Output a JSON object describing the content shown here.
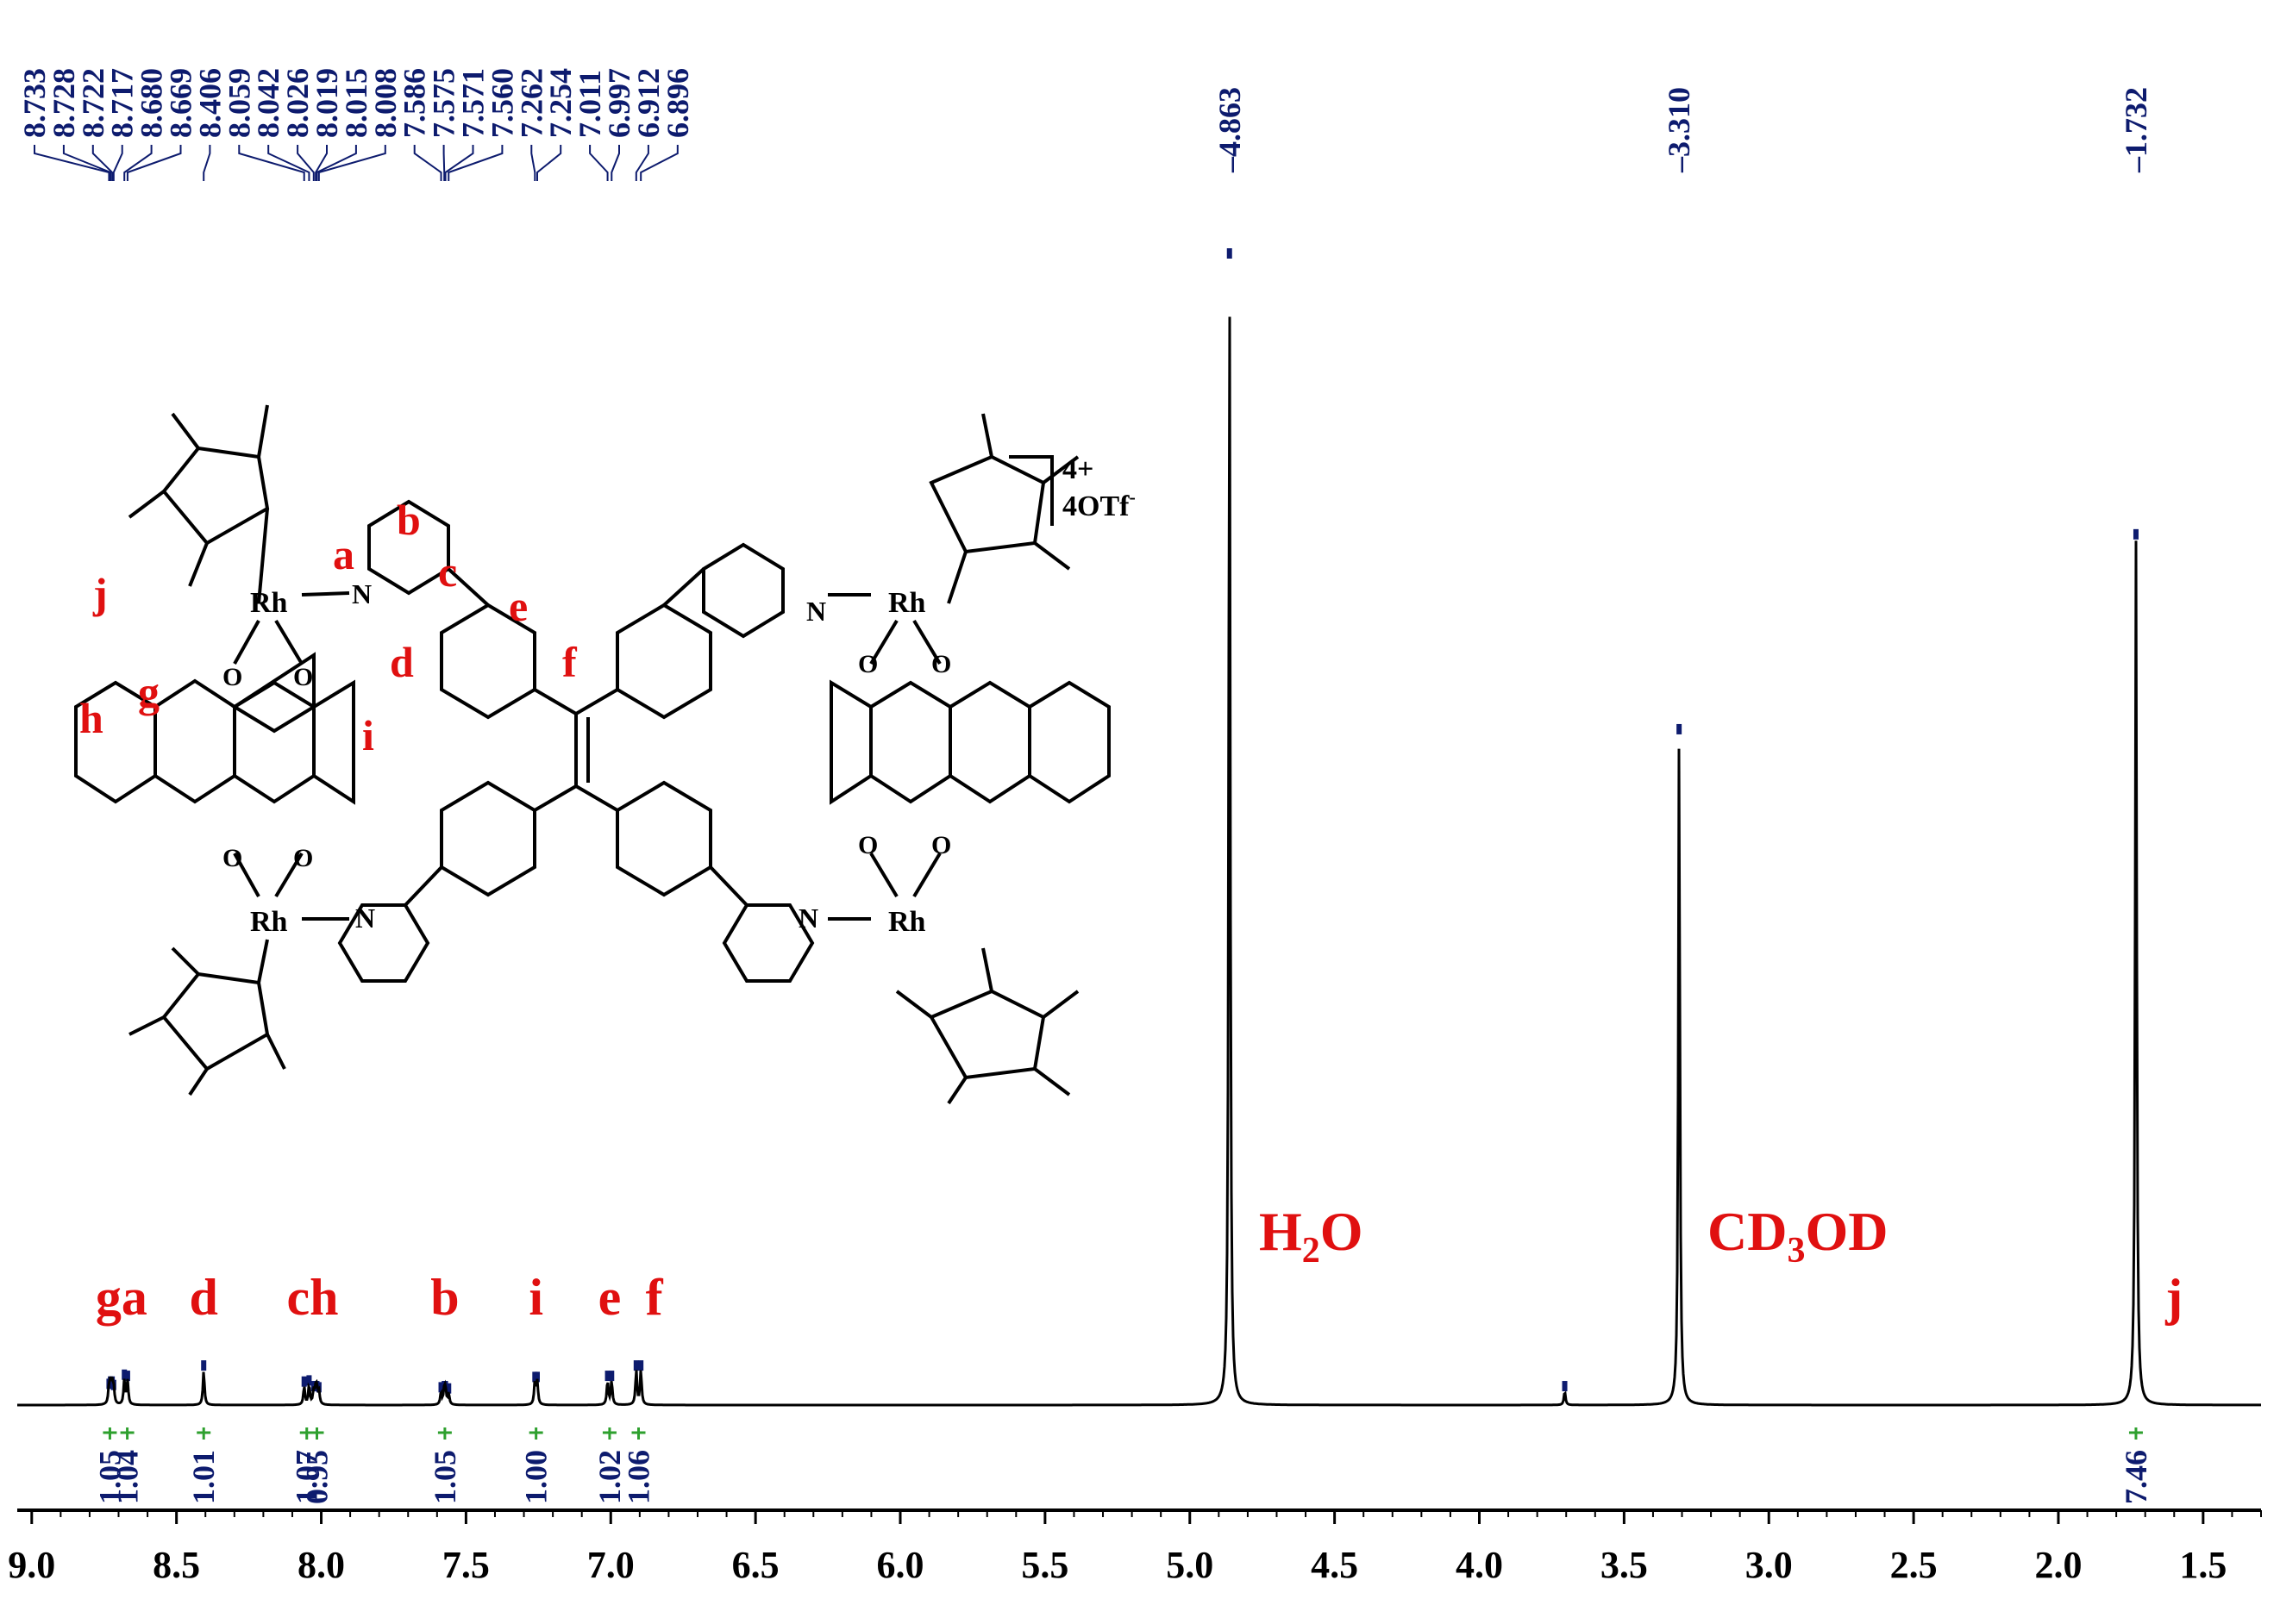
{
  "chart_data": {
    "type": "line",
    "title": "",
    "xlabel": "",
    "ylabel": "",
    "x_axis": {
      "range_ppm": [
        9.05,
        1.3
      ],
      "reversed": true,
      "ticks": [
        "9.0",
        "8.5",
        "8.0",
        "7.5",
        "7.0",
        "6.5",
        "6.0",
        "5.5",
        "5.0",
        "4.5",
        "4.0",
        "3.5",
        "3.0",
        "2.5",
        "2.0",
        "1.5"
      ]
    },
    "y_axis": {
      "range": [
        0,
        1
      ]
    },
    "peak_shifts": [
      "8.733",
      "8.728",
      "8.722",
      "8.717",
      "8.680",
      "8.669",
      "8.406",
      "8.059",
      "8.042",
      "8.026",
      "8.019",
      "8.015",
      "8.008",
      "7.586",
      "7.575",
      "7.571",
      "7.560",
      "7.262",
      "7.254",
      "7.011",
      "6.997",
      "6.912",
      "6.896",
      "4.863",
      "3.310",
      "1.732"
    ],
    "peaks": [
      {
        "ppm": 8.733,
        "height": 0.014
      },
      {
        "ppm": 8.728,
        "height": 0.016
      },
      {
        "ppm": 8.722,
        "height": 0.016
      },
      {
        "ppm": 8.717,
        "height": 0.013
      },
      {
        "ppm": 8.68,
        "height": 0.022
      },
      {
        "ppm": 8.669,
        "height": 0.021
      },
      {
        "ppm": 8.406,
        "height": 0.03
      },
      {
        "ppm": 8.059,
        "height": 0.016
      },
      {
        "ppm": 8.042,
        "height": 0.017
      },
      {
        "ppm": 8.026,
        "height": 0.012
      },
      {
        "ppm": 8.019,
        "height": 0.012
      },
      {
        "ppm": 8.015,
        "height": 0.012
      },
      {
        "ppm": 8.008,
        "height": 0.011
      },
      {
        "ppm": 7.586,
        "height": 0.011
      },
      {
        "ppm": 7.575,
        "height": 0.012
      },
      {
        "ppm": 7.571,
        "height": 0.012
      },
      {
        "ppm": 7.56,
        "height": 0.01
      },
      {
        "ppm": 7.262,
        "height": 0.02
      },
      {
        "ppm": 7.254,
        "height": 0.02
      },
      {
        "ppm": 7.011,
        "height": 0.021
      },
      {
        "ppm": 6.997,
        "height": 0.021
      },
      {
        "ppm": 6.912,
        "height": 0.03
      },
      {
        "ppm": 6.896,
        "height": 0.03
      },
      {
        "ppm": 4.863,
        "height": 1.0
      },
      {
        "ppm": 3.705,
        "height": 0.012
      },
      {
        "ppm": 3.31,
        "height": 0.585
      },
      {
        "ppm": 1.732,
        "height": 0.755
      }
    ],
    "peak_labels": [
      {
        "ppm": 4.863,
        "text": "4.863"
      },
      {
        "ppm": 3.31,
        "text": "3.310"
      },
      {
        "ppm": 1.732,
        "text": "1.732"
      }
    ],
    "integrals": [
      {
        "ppm": 8.73,
        "value": "1.05"
      },
      {
        "ppm": 8.67,
        "value": "1.04"
      },
      {
        "ppm": 8.406,
        "value": "1.01"
      },
      {
        "ppm": 8.05,
        "value": "1.07"
      },
      {
        "ppm": 8.015,
        "value": "0.95"
      },
      {
        "ppm": 7.573,
        "value": "1.05"
      },
      {
        "ppm": 7.258,
        "value": "1.00"
      },
      {
        "ppm": 7.004,
        "value": "1.02"
      },
      {
        "ppm": 6.904,
        "value": "1.06"
      },
      {
        "ppm": 1.732,
        "value": "7.46"
      }
    ],
    "assignments": [
      {
        "text": "ga",
        "ppm": 8.69
      },
      {
        "text": "d",
        "ppm": 8.406
      },
      {
        "text": "ch",
        "ppm": 8.03
      },
      {
        "text": "b",
        "ppm": 7.573
      },
      {
        "text": "i",
        "ppm": 7.258
      },
      {
        "text": "e",
        "ppm": 7.004
      },
      {
        "text": "f",
        "ppm": 6.85
      },
      {
        "text": "j",
        "ppm": 1.6
      }
    ],
    "solvent_labels": {
      "h2o": {
        "main": "H",
        "sub": "2",
        "tail": "O"
      },
      "cd3od": {
        "main": "CD",
        "sub": "3",
        "tail": "OD"
      }
    },
    "structure": {
      "charge": "4+",
      "counterion": "4OTf",
      "counterion_sup": "-",
      "metal": "Rh",
      "nitrogen": "N",
      "oxygen": "O",
      "proton_labels": [
        "a",
        "b",
        "c",
        "d",
        "e",
        "f",
        "g",
        "h",
        "i",
        "j"
      ]
    },
    "colors": {
      "spectrum": "#000000",
      "peak_labels": "#0d1b6e",
      "integrals": "#0d1b6e",
      "integral_marks": "#2ea02e",
      "assignments": "#e01010"
    }
  }
}
